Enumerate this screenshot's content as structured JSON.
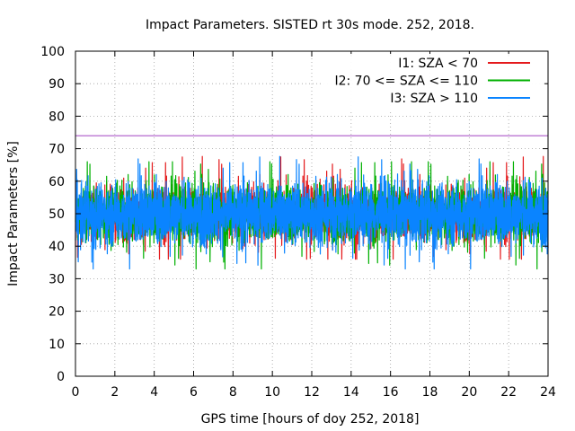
{
  "chart_data": {
    "type": "line",
    "title": "Impact Parameters. SISTED rt 30s mode. 252, 2018.",
    "xlabel": "GPS time [hours of doy 252, 2018]",
    "ylabel": "Impact Parameters [%]",
    "xlim": [
      0,
      24
    ],
    "ylim": [
      0,
      100
    ],
    "xticks": [
      0,
      2,
      4,
      6,
      8,
      10,
      12,
      14,
      16,
      18,
      20,
      22,
      24
    ],
    "yticks": [
      0,
      10,
      20,
      30,
      40,
      50,
      60,
      70,
      80,
      90,
      100
    ],
    "grid": true,
    "legend_position": "top-right",
    "threshold": {
      "value": 74,
      "color": "#a040c0"
    },
    "series": [
      {
        "name": "I1: SZA < 70",
        "color": "#e41a1c",
        "center": 50,
        "spread_min": 36,
        "spread_max": 69
      },
      {
        "name": "I2: 70 <= SZA <= 110",
        "color": "#00b000",
        "center": 50,
        "spread_min": 33,
        "spread_max": 66
      },
      {
        "name": "I3: SZA > 110",
        "color": "#0a84ff",
        "center": 50,
        "spread_min": 33,
        "spread_max": 68
      }
    ]
  }
}
